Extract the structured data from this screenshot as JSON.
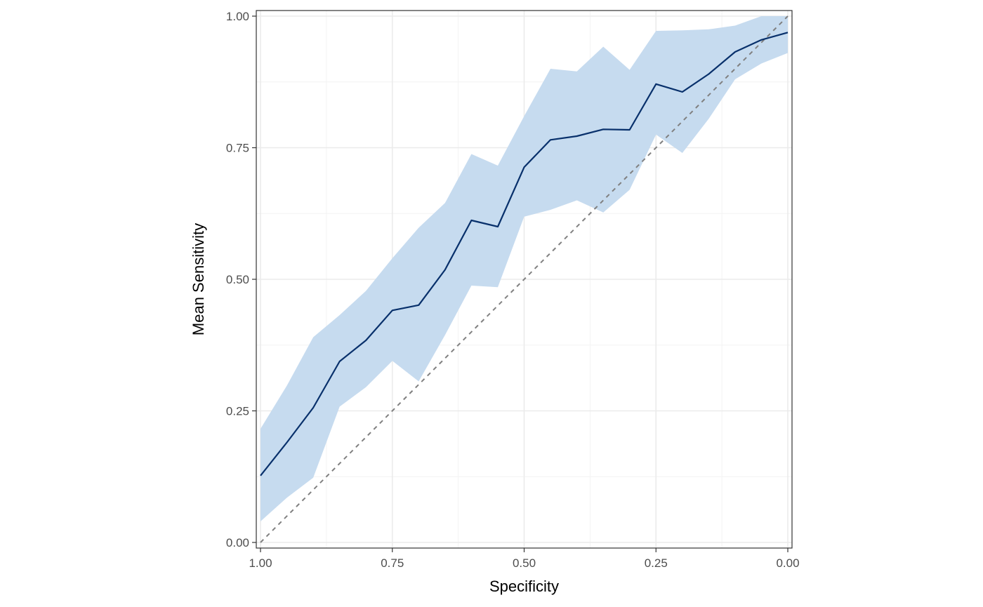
{
  "chart_data": {
    "type": "line",
    "title": "",
    "xlabel": "Specificity",
    "ylabel": "Mean Sensitivity",
    "xlim": [
      1.0,
      0.0
    ],
    "ylim": [
      0.0,
      1.0
    ],
    "x_reversed": true,
    "grid": true,
    "legend": "none",
    "x_ticks": [
      {
        "value": 1.0,
        "label": "1.00"
      },
      {
        "value": 0.75,
        "label": "0.75"
      },
      {
        "value": 0.5,
        "label": "0.50"
      },
      {
        "value": 0.25,
        "label": "0.25"
      },
      {
        "value": 0.0,
        "label": "0.00"
      }
    ],
    "y_ticks": [
      {
        "value": 0.0,
        "label": "0.00"
      },
      {
        "value": 0.25,
        "label": "0.25"
      },
      {
        "value": 0.5,
        "label": "0.50"
      },
      {
        "value": 0.75,
        "label": "0.75"
      },
      {
        "value": 1.0,
        "label": "1.00"
      }
    ],
    "x": [
      1.0,
      0.95,
      0.9,
      0.85,
      0.8,
      0.75,
      0.7,
      0.65,
      0.6,
      0.55,
      0.5,
      0.45,
      0.4,
      0.35,
      0.3,
      0.25,
      0.2,
      0.15,
      0.1,
      0.05,
      0.0
    ],
    "series": [
      {
        "values": [
          0.127,
          0.19,
          0.256,
          0.344,
          0.384,
          0.441,
          0.451,
          0.518,
          0.612,
          0.6,
          0.713,
          0.765,
          0.772,
          0.785,
          0.784,
          0.871,
          0.856,
          0.89,
          0.932,
          0.955,
          0.969
        ],
        "lower": [
          0.04,
          0.085,
          0.123,
          0.258,
          0.295,
          0.345,
          0.306,
          0.394,
          0.488,
          0.485,
          0.619,
          0.632,
          0.65,
          0.627,
          0.67,
          0.775,
          0.74,
          0.805,
          0.88,
          0.91,
          0.93
        ],
        "upper": [
          0.216,
          0.298,
          0.39,
          0.432,
          0.478,
          0.54,
          0.598,
          0.645,
          0.738,
          0.716,
          0.81,
          0.9,
          0.895,
          0.942,
          0.898,
          0.972,
          0.973,
          0.975,
          0.982,
          1.0,
          1.0
        ]
      }
    ],
    "reference_line": {
      "x": [
        1.0,
        0.0
      ],
      "y": [
        0.0,
        1.0
      ],
      "style": "dashed"
    },
    "colors": {
      "line": "#08306b",
      "ribbon": "#c6dbef",
      "reference": "#808080",
      "grid_major": "#ebebeb",
      "grid_minor": "#f3f3f3",
      "panel_border": "#333333",
      "tick_text": "#4d4d4d"
    }
  }
}
